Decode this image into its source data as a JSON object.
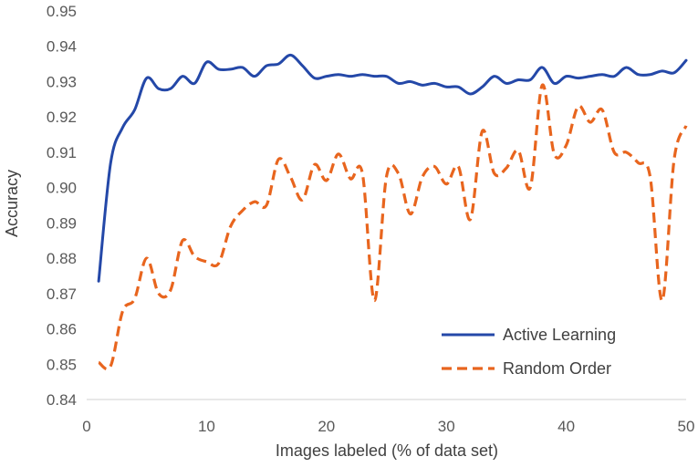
{
  "chart_data": {
    "type": "line",
    "xlabel": "Images labeled (% of data set)",
    "ylabel": "Accuracy",
    "xlim": [
      0,
      50
    ],
    "ylim": [
      0.84,
      0.95
    ],
    "xticks": [
      "0",
      "10",
      "20",
      "30",
      "40",
      "50"
    ],
    "yticks": [
      "0.84",
      "0.85",
      "0.86",
      "0.87",
      "0.88",
      "0.89",
      "0.90",
      "0.91",
      "0.92",
      "0.93",
      "0.94",
      "0.95"
    ],
    "grid": false,
    "legend_position": "bottom-right",
    "x": [
      1,
      2,
      3,
      4,
      5,
      6,
      7,
      8,
      9,
      10,
      11,
      12,
      13,
      14,
      15,
      16,
      17,
      18,
      19,
      20,
      21,
      22,
      23,
      24,
      25,
      26,
      27,
      28,
      29,
      30,
      31,
      32,
      33,
      34,
      35,
      36,
      37,
      38,
      39,
      40,
      41,
      42,
      43,
      44,
      45,
      46,
      47,
      48,
      49,
      50
    ],
    "series": [
      {
        "name": "Active Learning",
        "color": "#2448a8",
        "style": "solid",
        "values": [
          0.8735,
          0.907,
          0.917,
          0.922,
          0.931,
          0.928,
          0.928,
          0.9315,
          0.9295,
          0.9355,
          0.9335,
          0.9335,
          0.934,
          0.9315,
          0.9345,
          0.935,
          0.9375,
          0.9345,
          0.931,
          0.9315,
          0.932,
          0.9315,
          0.932,
          0.9315,
          0.9315,
          0.9295,
          0.93,
          0.929,
          0.9295,
          0.9285,
          0.9285,
          0.9265,
          0.9285,
          0.9315,
          0.9295,
          0.9305,
          0.9305,
          0.934,
          0.9295,
          0.9315,
          0.931,
          0.9315,
          0.932,
          0.9315,
          0.934,
          0.932,
          0.932,
          0.933,
          0.9325,
          0.936
        ]
      },
      {
        "name": "Random Order",
        "color": "#e8651e",
        "style": "dashed",
        "values": [
          0.8505,
          0.8495,
          0.865,
          0.8685,
          0.88,
          0.87,
          0.871,
          0.885,
          0.8805,
          0.879,
          0.8785,
          0.889,
          0.8935,
          0.896,
          0.895,
          0.908,
          0.903,
          0.8965,
          0.9065,
          0.902,
          0.9095,
          0.9025,
          0.904,
          0.868,
          0.903,
          0.904,
          0.8925,
          0.903,
          0.906,
          0.901,
          0.906,
          0.891,
          0.916,
          0.904,
          0.9055,
          0.9105,
          0.9,
          0.929,
          0.9095,
          0.912,
          0.923,
          0.9185,
          0.922,
          0.91,
          0.91,
          0.907,
          0.903,
          0.868,
          0.908,
          0.9175
        ]
      }
    ]
  }
}
